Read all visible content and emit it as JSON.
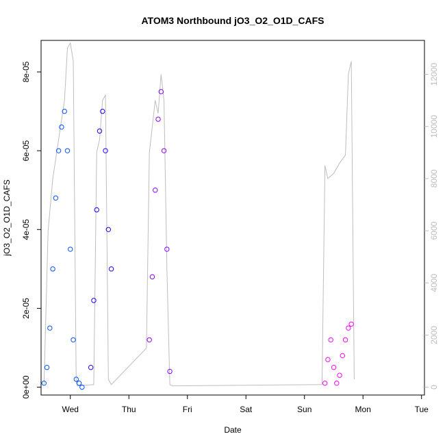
{
  "chart_data": {
    "type": "scatter",
    "title": "ATOM3 Northbound jO3_O2_O1D_CAFS",
    "xlabel": "Date",
    "ylabel": "jO3_O2_O1D_CAFS",
    "x_tick_labels": [
      "Wed",
      "Thu",
      "Fri",
      "Sat",
      "Sun",
      "Mon",
      "Tue"
    ],
    "x_ticks_day_offset": [
      1,
      2,
      3,
      4,
      5,
      6,
      7
    ],
    "xlim_day_offset": [
      0.5,
      7.05
    ],
    "y_tick_labels": [
      "0e+00",
      "2e-05",
      "4e-05",
      "6e-05",
      "8e-05"
    ],
    "y_ticks": [
      0,
      2e-05,
      4e-05,
      6e-05,
      8e-05
    ],
    "ylim": [
      -2e-06,
      8.8e-05
    ],
    "y2_tick_labels": [
      "0",
      "2000",
      "4000",
      "6000",
      "8000",
      "10000",
      "12000"
    ],
    "y2_ticks": [
      0,
      2000,
      4000,
      6000,
      8000,
      10000,
      12000
    ],
    "y2lim": [
      -300,
      13300
    ],
    "grid": false,
    "colors": {
      "secondary_line": "#bdbdbd",
      "series_day1": "#0050ff",
      "series_day2": "#1a00ff",
      "series_day3": "#8a00ff",
      "series_day6": "#ff00ff"
    },
    "series": [
      {
        "color": "#0050ff",
        "x": [
          0.55,
          0.6,
          0.65,
          0.7,
          0.75,
          0.8,
          0.85,
          0.9,
          0.95,
          1.0,
          1.05,
          1.1,
          1.15,
          1.2
        ],
        "y": [
          1e-06,
          5e-06,
          1.5e-05,
          3e-05,
          4.8e-05,
          6e-05,
          6.6e-05,
          7e-05,
          6e-05,
          3.5e-05,
          1.2e-05,
          2e-06,
          1e-06,
          0.0
        ]
      },
      {
        "color": "#1a00ff",
        "x": [
          1.35,
          1.4,
          1.45,
          1.5,
          1.55,
          1.6,
          1.65,
          1.7
        ],
        "y": [
          5e-06,
          2.2e-05,
          4.5e-05,
          6.5e-05,
          7e-05,
          6e-05,
          4e-05,
          3e-05
        ]
      },
      {
        "color": "#8a00ff",
        "x": [
          2.35,
          2.4,
          2.45,
          2.5,
          2.55,
          2.6,
          2.65,
          2.7
        ],
        "y": [
          1.2e-05,
          2.8e-05,
          5e-05,
          6.8e-05,
          7.5e-05,
          6e-05,
          3.5e-05,
          4e-06
        ]
      },
      {
        "color": "#ff00ff",
        "x": [
          5.35,
          5.4,
          5.45,
          5.5,
          5.55,
          5.6,
          5.65,
          5.7,
          5.75,
          5.8
        ],
        "y": [
          1e-06,
          7e-06,
          1.2e-05,
          5e-06,
          1e-06,
          3e-06,
          8e-06,
          1.2e-05,
          1.5e-05,
          1.6e-05
        ]
      },
      {
        "color": "#bdbdbd",
        "type": "line",
        "axis": "right",
        "x": [
          0.55,
          0.62,
          0.7,
          0.8,
          0.9,
          0.95,
          1.0,
          1.05,
          1.1,
          1.12,
          1.4,
          1.45,
          1.5,
          1.55,
          1.6,
          1.65,
          1.7,
          2.3,
          2.35,
          2.4,
          2.45,
          2.5,
          2.55,
          2.6,
          2.65,
          2.7,
          2.75,
          5.3,
          5.35,
          5.4,
          5.5,
          5.6,
          5.7,
          5.75,
          5.8,
          5.85
        ],
        "y": [
          100,
          6000,
          8000,
          9500,
          11000,
          13000,
          13200,
          12500,
          200,
          50,
          100,
          9000,
          9500,
          11000,
          11200,
          300,
          100,
          1500,
          9000,
          10000,
          11000,
          10500,
          12000,
          11000,
          4500,
          100,
          50,
          100,
          8500,
          8000,
          8200,
          8600,
          8900,
          12000,
          12500,
          300
        ]
      }
    ]
  }
}
